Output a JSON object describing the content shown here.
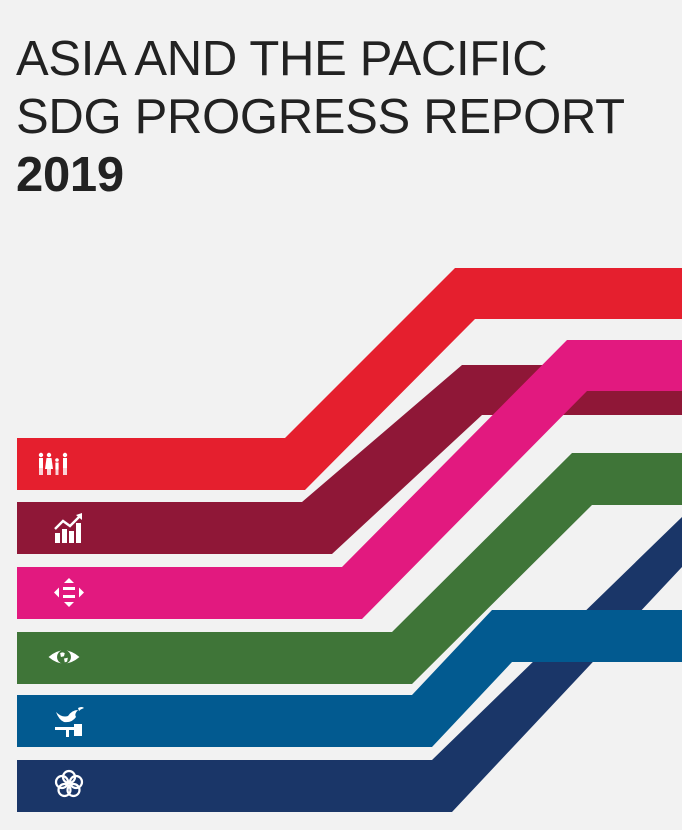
{
  "title": {
    "line1": "ASIA AND THE PACIFIC",
    "line2": "SDG PROGRESS REPORT",
    "year": "2019"
  },
  "stripes": [
    {
      "name": "people",
      "color": "#e51f2e",
      "icon": "family-icon"
    },
    {
      "name": "prosperity",
      "color": "#8f1737",
      "icon": "growth-chart-icon"
    },
    {
      "name": "equality",
      "color": "#e2197f",
      "icon": "equality-arrows-icon"
    },
    {
      "name": "planet",
      "color": "#3f7538",
      "icon": "eye-globe-icon"
    },
    {
      "name": "peace",
      "color": "#025a90",
      "icon": "dove-gavel-icon"
    },
    {
      "name": "partnership",
      "color": "#1a3668",
      "icon": "flower-icon"
    }
  ]
}
